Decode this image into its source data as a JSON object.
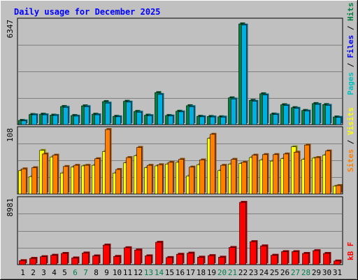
{
  "title": "Daily usage for December 2025",
  "colors": {
    "background": "#c0c0c0",
    "plot_bg": "#c0c0c0",
    "grid": "#808080",
    "title": "#0000ff",
    "pages": "#00c0c0",
    "files": "#00b0e0",
    "hits": "#008040",
    "visits": "#ffff00",
    "sites": "#ff8000",
    "kbytes": "#ff0000",
    "weekend_day": "#00804c"
  },
  "chart_data": [
    {
      "type": "bar",
      "panel": "pages-files-hits",
      "title": "Daily usage for December 2025",
      "ylabel_max": "6347",
      "legend": [
        {
          "label": "Pages",
          "color": "#00c0c0"
        },
        {
          "label": "Files",
          "color": "#0000ff"
        },
        {
          "label": "Hits",
          "color": "#008040"
        }
      ],
      "ylim": [
        0,
        6347
      ],
      "categories": [
        "1",
        "2",
        "3",
        "4",
        "5",
        "6",
        "7",
        "8",
        "9",
        "10",
        "11",
        "12",
        "13",
        "14",
        "15",
        "16",
        "17",
        "18",
        "19",
        "20",
        "21",
        "22",
        "23",
        "24",
        "25",
        "26",
        "27",
        "28",
        "29",
        "30",
        "31"
      ],
      "series": [
        {
          "name": "Hits",
          "values": [
            260,
            620,
            640,
            580,
            1110,
            560,
            1150,
            640,
            1410,
            510,
            1430,
            810,
            580,
            1960,
            560,
            820,
            1160,
            510,
            500,
            480,
            1640,
            6170,
            1490,
            1890,
            650,
            1220,
            1040,
            870,
            1290,
            1230,
            470
          ]
        },
        {
          "name": "Files",
          "values": [
            230,
            600,
            600,
            560,
            1060,
            520,
            1100,
            600,
            1320,
            480,
            1380,
            760,
            550,
            1850,
            530,
            780,
            1100,
            480,
            470,
            460,
            1570,
            6100,
            1430,
            1820,
            620,
            1170,
            1000,
            830,
            1240,
            1180,
            440
          ]
        }
      ]
    },
    {
      "type": "bar",
      "panel": "visits-sites",
      "ylabel_max": "108",
      "legend": [
        {
          "label": "Sites",
          "color": "#ff8000"
        },
        {
          "label": "Visits",
          "color": "#ffff00"
        }
      ],
      "ylim": [
        0,
        108
      ],
      "categories": [
        "1",
        "2",
        "3",
        "4",
        "5",
        "6",
        "7",
        "8",
        "9",
        "10",
        "11",
        "12",
        "13",
        "14",
        "15",
        "16",
        "17",
        "18",
        "19",
        "20",
        "21",
        "22",
        "23",
        "24",
        "25",
        "26",
        "27",
        "28",
        "29",
        "30",
        "31"
      ],
      "series": [
        {
          "name": "Visits",
          "values": [
            39,
            29,
            73,
            62,
            35,
            45,
            47,
            48,
            71,
            35,
            52,
            64,
            44,
            47,
            50,
            53,
            30,
            49,
            93,
            39,
            50,
            51,
            61,
            57,
            55,
            59,
            79,
            58,
            60,
            65,
            13
          ]
        },
        {
          "name": "Sites",
          "values": [
            42,
            44,
            67,
            65,
            46,
            48,
            48,
            59,
            108,
            41,
            61,
            78,
            48,
            49,
            53,
            58,
            45,
            57,
            100,
            48,
            58,
            53,
            65,
            66,
            66,
            67,
            70,
            82,
            61,
            72,
            14
          ]
        }
      ]
    },
    {
      "type": "bar",
      "panel": "kbytes",
      "ylabel_max": "8981",
      "legend": [
        {
          "label": "kB F",
          "color": "#ff0000"
        }
      ],
      "ylim": [
        0,
        8981
      ],
      "categories": [
        "1",
        "2",
        "3",
        "4",
        "5",
        "6",
        "7",
        "8",
        "9",
        "10",
        "11",
        "12",
        "13",
        "14",
        "15",
        "16",
        "17",
        "18",
        "19",
        "20",
        "21",
        "22",
        "23",
        "24",
        "25",
        "26",
        "27",
        "28",
        "29",
        "30",
        "31"
      ],
      "series": [
        {
          "name": "kB F",
          "values": [
            560,
            880,
            1120,
            1320,
            1580,
            940,
            1640,
            1230,
            2760,
            1160,
            2380,
            2060,
            1240,
            3150,
            1000,
            1460,
            1620,
            1050,
            1270,
            1050,
            2420,
            8780,
            3240,
            2640,
            1320,
            1830,
            1830,
            1580,
            1970,
            1580,
            510
          ]
        }
      ]
    }
  ],
  "x_labels": [
    "1",
    "2",
    "3",
    "4",
    "5",
    "6",
    "7",
    "8",
    "9",
    "10",
    "11",
    "12",
    "13",
    "14",
    "15",
    "16",
    "17",
    "18",
    "19",
    "20",
    "21",
    "22",
    "23",
    "24",
    "25",
    "26",
    "27",
    "28",
    "29",
    "30",
    "31"
  ],
  "weekend_days": [
    "6",
    "7",
    "13",
    "14",
    "20",
    "21",
    "27",
    "28"
  ]
}
